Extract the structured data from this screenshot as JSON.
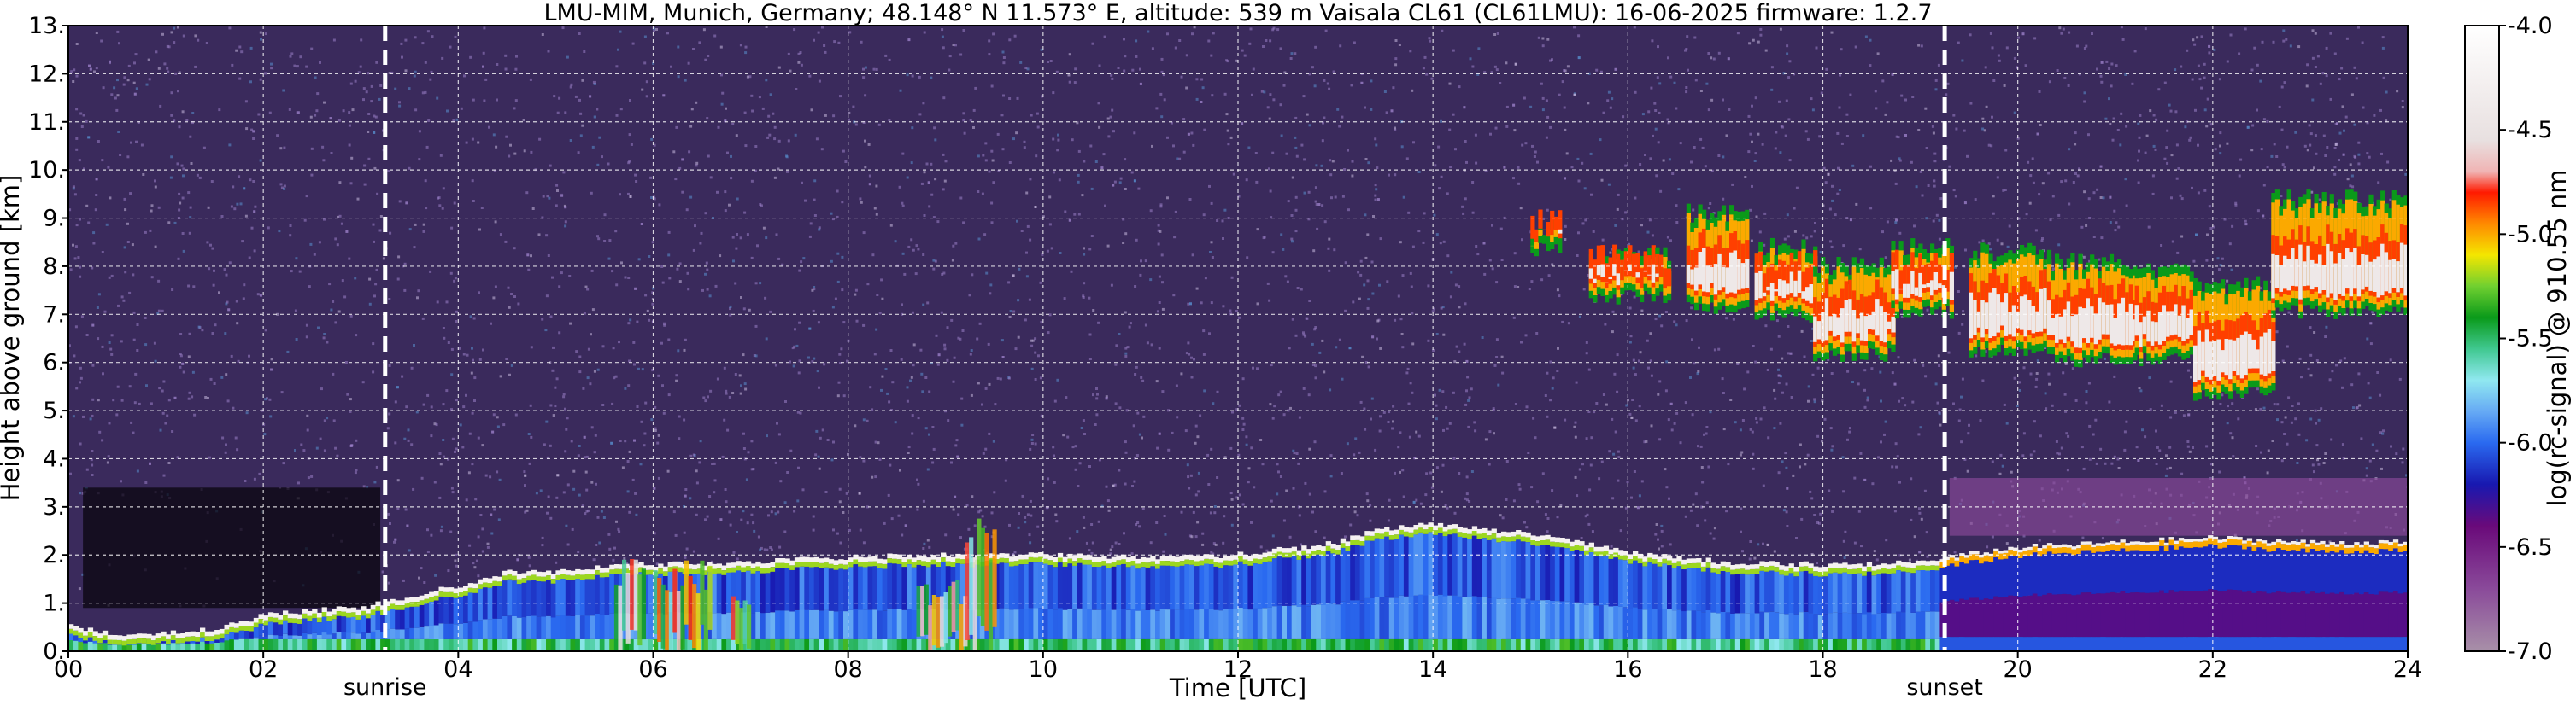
{
  "title": "LMU-MIM, Munich, Germany; 48.148° N 11.573° E, altitude: 539 m    Vaisala CL61 (CL61LMU): 16-06-2025    firmware: 1.2.7",
  "colors": {
    "background_dark": "#3a2a5c",
    "speckle_purple": "#9b7fc8",
    "grid": "#ffffff"
  },
  "chart_data": {
    "type": "heatmap",
    "title": "LMU-MIM, Munich, Germany; 48.148° N 11.573° E, altitude: 539 m    Vaisala CL61 (CL61LMU): 16-06-2025    firmware: 1.2.7",
    "xlabel": "Time [UTC]",
    "ylabel": "Height above ground [km]",
    "xlim": [
      0,
      24
    ],
    "ylim": [
      0,
      13
    ],
    "x_ticks": [
      "00",
      "02",
      "04",
      "06",
      "08",
      "10",
      "12",
      "14",
      "16",
      "18",
      "20",
      "22",
      "24"
    ],
    "y_ticks": [
      "0.",
      "1.",
      "2.",
      "3.",
      "4.",
      "5.",
      "6.",
      "7.",
      "8.",
      "9.",
      "10.",
      "11.",
      "12.",
      "13."
    ],
    "grid": true,
    "colorbar": {
      "label": "log(rc-signal) @ 910.55 nm",
      "range": [
        -7.0,
        -4.0
      ],
      "ticks": [
        "-4.0",
        "-4.5",
        "-5.0",
        "-5.5",
        "-6.0",
        "-6.5",
        "-7.0"
      ],
      "stops": [
        {
          "v": -7.0,
          "color": "#a890a8"
        },
        {
          "v": -6.7,
          "color": "#8a4a9a"
        },
        {
          "v": -6.4,
          "color": "#6a0a7a"
        },
        {
          "v": -6.2,
          "color": "#1818b0"
        },
        {
          "v": -6.0,
          "color": "#2a6af0"
        },
        {
          "v": -5.85,
          "color": "#66aaf4"
        },
        {
          "v": -5.7,
          "color": "#90e8f0"
        },
        {
          "v": -5.55,
          "color": "#40c890"
        },
        {
          "v": -5.4,
          "color": "#0a9a1a"
        },
        {
          "v": -5.25,
          "color": "#70d030"
        },
        {
          "v": -5.1,
          "color": "#f4e600"
        },
        {
          "v": -4.95,
          "color": "#ff8a00"
        },
        {
          "v": -4.8,
          "color": "#ff1a00"
        },
        {
          "v": -4.7,
          "color": "#f0b4b4"
        },
        {
          "v": -4.55,
          "color": "#e8e0e0"
        },
        {
          "v": -4.0,
          "color": "#ffffff"
        }
      ]
    },
    "events": [
      {
        "label": "sunrise",
        "time": 3.25
      },
      {
        "label": "sunset",
        "time": 19.25
      }
    ],
    "features": {
      "boundary_layer_top_km": [
        {
          "t": 0.0,
          "h": 0.5
        },
        {
          "t": 0.5,
          "h": 0.3
        },
        {
          "t": 1.0,
          "h": 0.35
        },
        {
          "t": 1.5,
          "h": 0.4
        },
        {
          "t": 2.0,
          "h": 0.7
        },
        {
          "t": 2.5,
          "h": 0.8
        },
        {
          "t": 3.0,
          "h": 0.85
        },
        {
          "t": 3.5,
          "h": 1.1
        },
        {
          "t": 4.0,
          "h": 1.3
        },
        {
          "t": 4.5,
          "h": 1.6
        },
        {
          "t": 5.0,
          "h": 1.6
        },
        {
          "t": 5.5,
          "h": 1.7
        },
        {
          "t": 6.0,
          "h": 1.75
        },
        {
          "t": 7.0,
          "h": 1.8
        },
        {
          "t": 8.0,
          "h": 1.9
        },
        {
          "t": 9.0,
          "h": 1.95
        },
        {
          "t": 10.0,
          "h": 1.95
        },
        {
          "t": 11.0,
          "h": 1.9
        },
        {
          "t": 12.0,
          "h": 1.95
        },
        {
          "t": 13.0,
          "h": 2.2
        },
        {
          "t": 13.5,
          "h": 2.5
        },
        {
          "t": 14.0,
          "h": 2.6
        },
        {
          "t": 15.0,
          "h": 2.4
        },
        {
          "t": 16.0,
          "h": 2.0
        },
        {
          "t": 17.0,
          "h": 1.8
        },
        {
          "t": 18.0,
          "h": 1.75
        },
        {
          "t": 19.0,
          "h": 1.8
        },
        {
          "t": 20.0,
          "h": 2.1
        },
        {
          "t": 21.0,
          "h": 2.2
        },
        {
          "t": 22.0,
          "h": 2.3
        },
        {
          "t": 23.0,
          "h": 2.2
        },
        {
          "t": 24.0,
          "h": 2.2
        }
      ],
      "cirrus_clouds": [
        {
          "t0": 15.0,
          "t1": 15.3,
          "base_km": 8.2,
          "top_km": 9.0
        },
        {
          "t0": 15.6,
          "t1": 16.4,
          "base_km": 7.2,
          "top_km": 8.4
        },
        {
          "t0": 16.6,
          "t1": 17.2,
          "base_km": 7.0,
          "top_km": 9.3
        },
        {
          "t0": 17.3,
          "t1": 17.9,
          "base_km": 6.8,
          "top_km": 8.6
        },
        {
          "t0": 17.9,
          "t1": 18.7,
          "base_km": 6.0,
          "top_km": 8.2
        },
        {
          "t0": 18.7,
          "t1": 19.3,
          "base_km": 6.9,
          "top_km": 8.6
        },
        {
          "t0": 19.5,
          "t1": 20.3,
          "base_km": 6.1,
          "top_km": 8.5
        },
        {
          "t0": 20.3,
          "t1": 21.2,
          "base_km": 5.9,
          "top_km": 8.3
        },
        {
          "t0": 21.2,
          "t1": 21.8,
          "base_km": 5.9,
          "top_km": 8.1
        },
        {
          "t0": 21.8,
          "t1": 22.6,
          "base_km": 5.2,
          "top_km": 7.8
        },
        {
          "t0": 22.6,
          "t1": 24.0,
          "base_km": 6.9,
          "top_km": 9.6
        }
      ]
    }
  }
}
